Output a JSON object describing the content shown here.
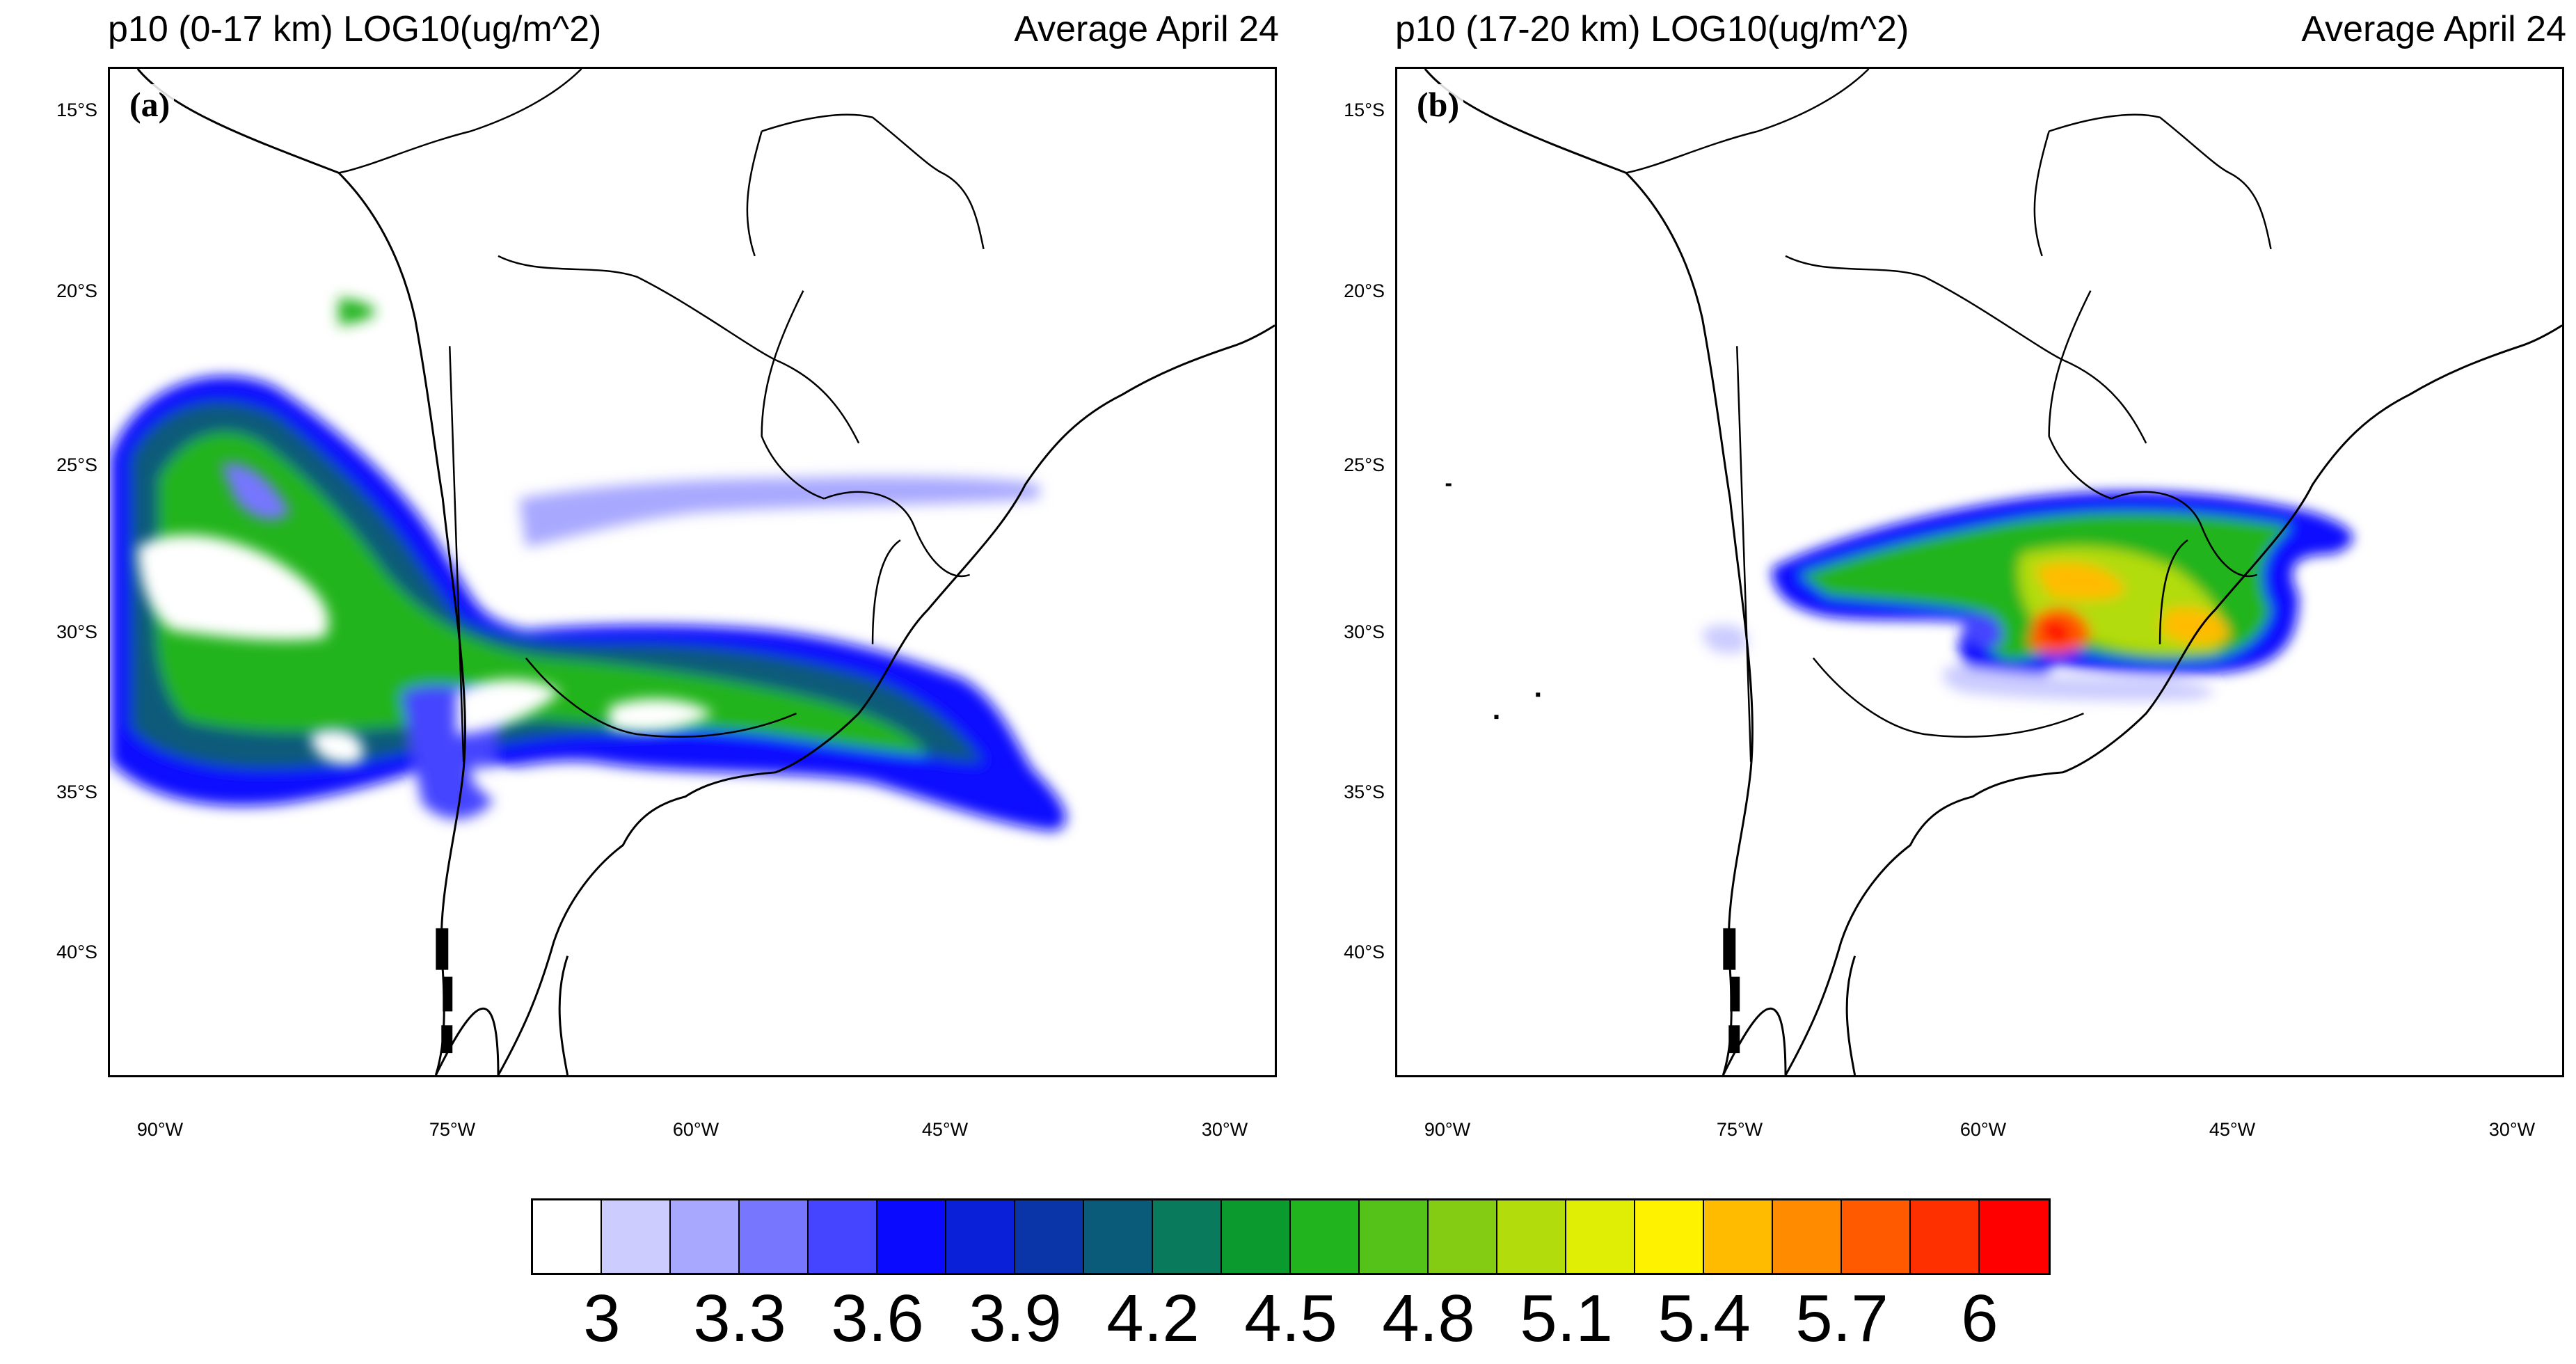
{
  "panels": [
    {
      "title_left": "p10 (0-17 km) LOG10(ug/m^2)",
      "title_right": "Average April 24",
      "label": "(a)"
    },
    {
      "title_left": "p10 (17-20 km) LOG10(ug/m^2)",
      "title_right": "Average April 24",
      "label": "(b)"
    }
  ],
  "axes": {
    "lat_ticks": [
      "15°S",
      "20°S",
      "25°S",
      "30°S",
      "35°S",
      "40°S"
    ],
    "lon_ticks": [
      "90°W",
      "75°W",
      "60°W",
      "45°W",
      "30°W"
    ]
  },
  "colorbar": {
    "colors": [
      "#ffffff",
      "#ccccff",
      "#a8a8ff",
      "#7676ff",
      "#4545ff",
      "#0a0aff",
      "#0a20d8",
      "#0a35a8",
      "#0a5a7a",
      "#0a7a5c",
      "#0a9a2e",
      "#22b41e",
      "#55c21a",
      "#84cc14",
      "#b2dc0c",
      "#e0ee06",
      "#fff200",
      "#ffbb00",
      "#ff8c00",
      "#ff5a00",
      "#ff3000",
      "#ff0000"
    ],
    "labels": [
      "3",
      "3.3",
      "3.6",
      "3.9",
      "4.2",
      "4.5",
      "4.8",
      "5.1",
      "5.4",
      "5.7",
      "6"
    ]
  }
}
